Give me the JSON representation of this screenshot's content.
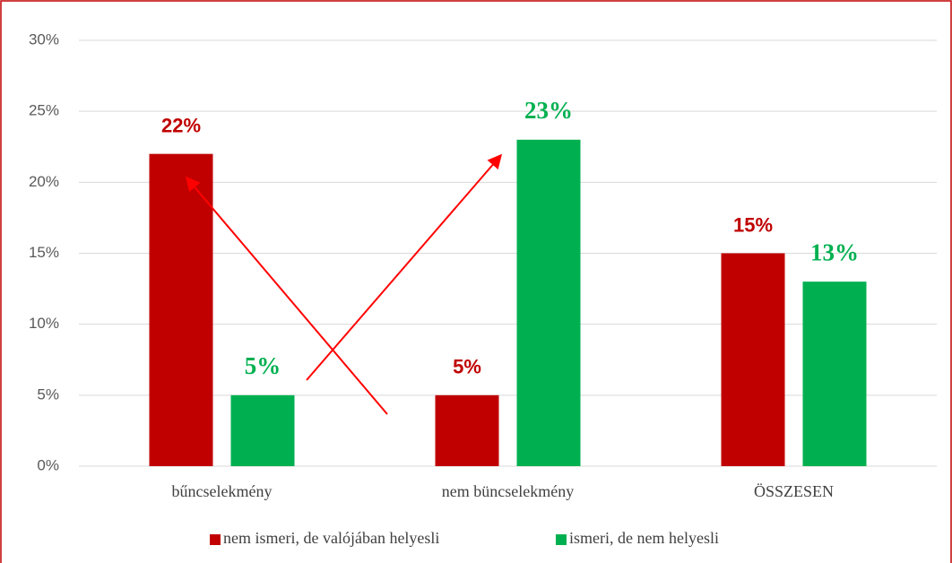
{
  "chart_data": {
    "type": "bar",
    "categories": [
      "bűncselekmény",
      "nem büncselekmény",
      "ÖSSZESEN"
    ],
    "series": [
      {
        "name": "nem ismeri, de valójában helyesli",
        "color": "#c00000",
        "values": [
          22,
          5,
          15
        ],
        "value_labels": [
          "22%",
          "5%",
          "15%"
        ]
      },
      {
        "name": "ismeri, de nem helyesli",
        "color": "#00b050",
        "values": [
          5,
          23,
          13
        ],
        "value_labels": [
          "5%",
          "23%",
          "13%"
        ]
      }
    ],
    "ylim": [
      0,
      30
    ],
    "yticks": [
      {
        "value": 0,
        "label": "0%"
      },
      {
        "value": 5,
        "label": "5%"
      },
      {
        "value": 10,
        "label": "10%"
      },
      {
        "value": 15,
        "label": "15%"
      },
      {
        "value": 20,
        "label": "20%"
      },
      {
        "value": 25,
        "label": "25%"
      },
      {
        "value": 30,
        "label": "30%"
      }
    ],
    "grid": true,
    "legend": "bottom"
  }
}
